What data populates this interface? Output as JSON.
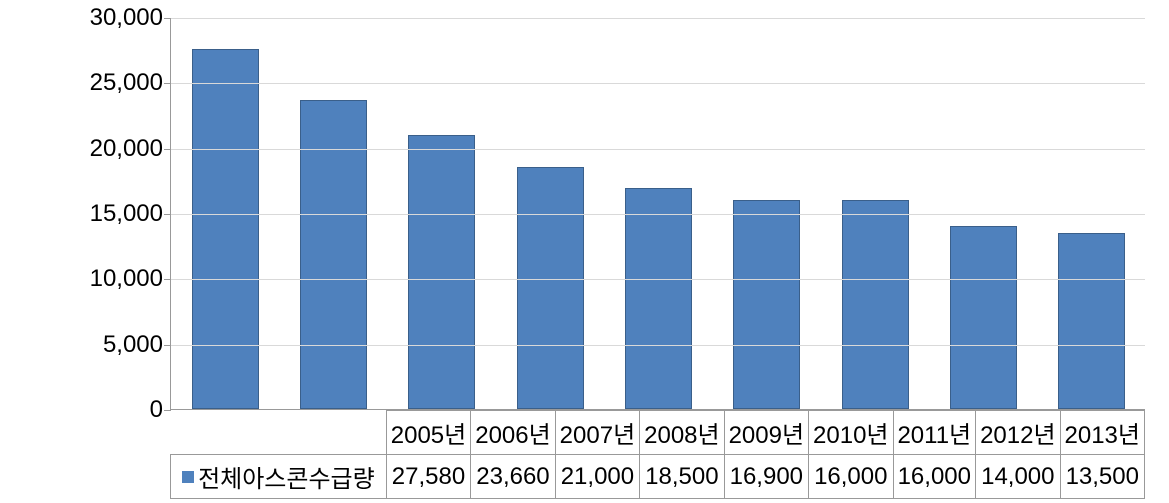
{
  "chart": {
    "type": "bar",
    "series_name": "전체아스콘수급량",
    "categories": [
      "2005년",
      "2006년",
      "2007년",
      "2008년",
      "2009년",
      "2010년",
      "2011년",
      "2012년",
      "2013년"
    ],
    "values": [
      27580,
      23660,
      21000,
      18500,
      16900,
      16000,
      16000,
      14000,
      13500
    ],
    "value_labels": [
      "27,580",
      "23,660",
      "21,000",
      "18,500",
      "16,900",
      "16,000",
      "16,000",
      "14,000",
      "13,500"
    ],
    "bar_color": "#4f81bd",
    "bar_border_color": "#3a5f8a",
    "grid_color": "#d9d9d9",
    "axis_color": "#999999",
    "background_color": "#ffffff",
    "text_color": "#000000",
    "bar_width_ratio": 0.62,
    "y": {
      "min": 0,
      "max": 30000,
      "tick_step": 5000,
      "tick_labels": [
        "0",
        "5,000",
        "10,000",
        "15,000",
        "20,000",
        "25,000",
        "30,000"
      ]
    },
    "label_fontsize": 24,
    "font_family": "Malgun Gothic"
  }
}
